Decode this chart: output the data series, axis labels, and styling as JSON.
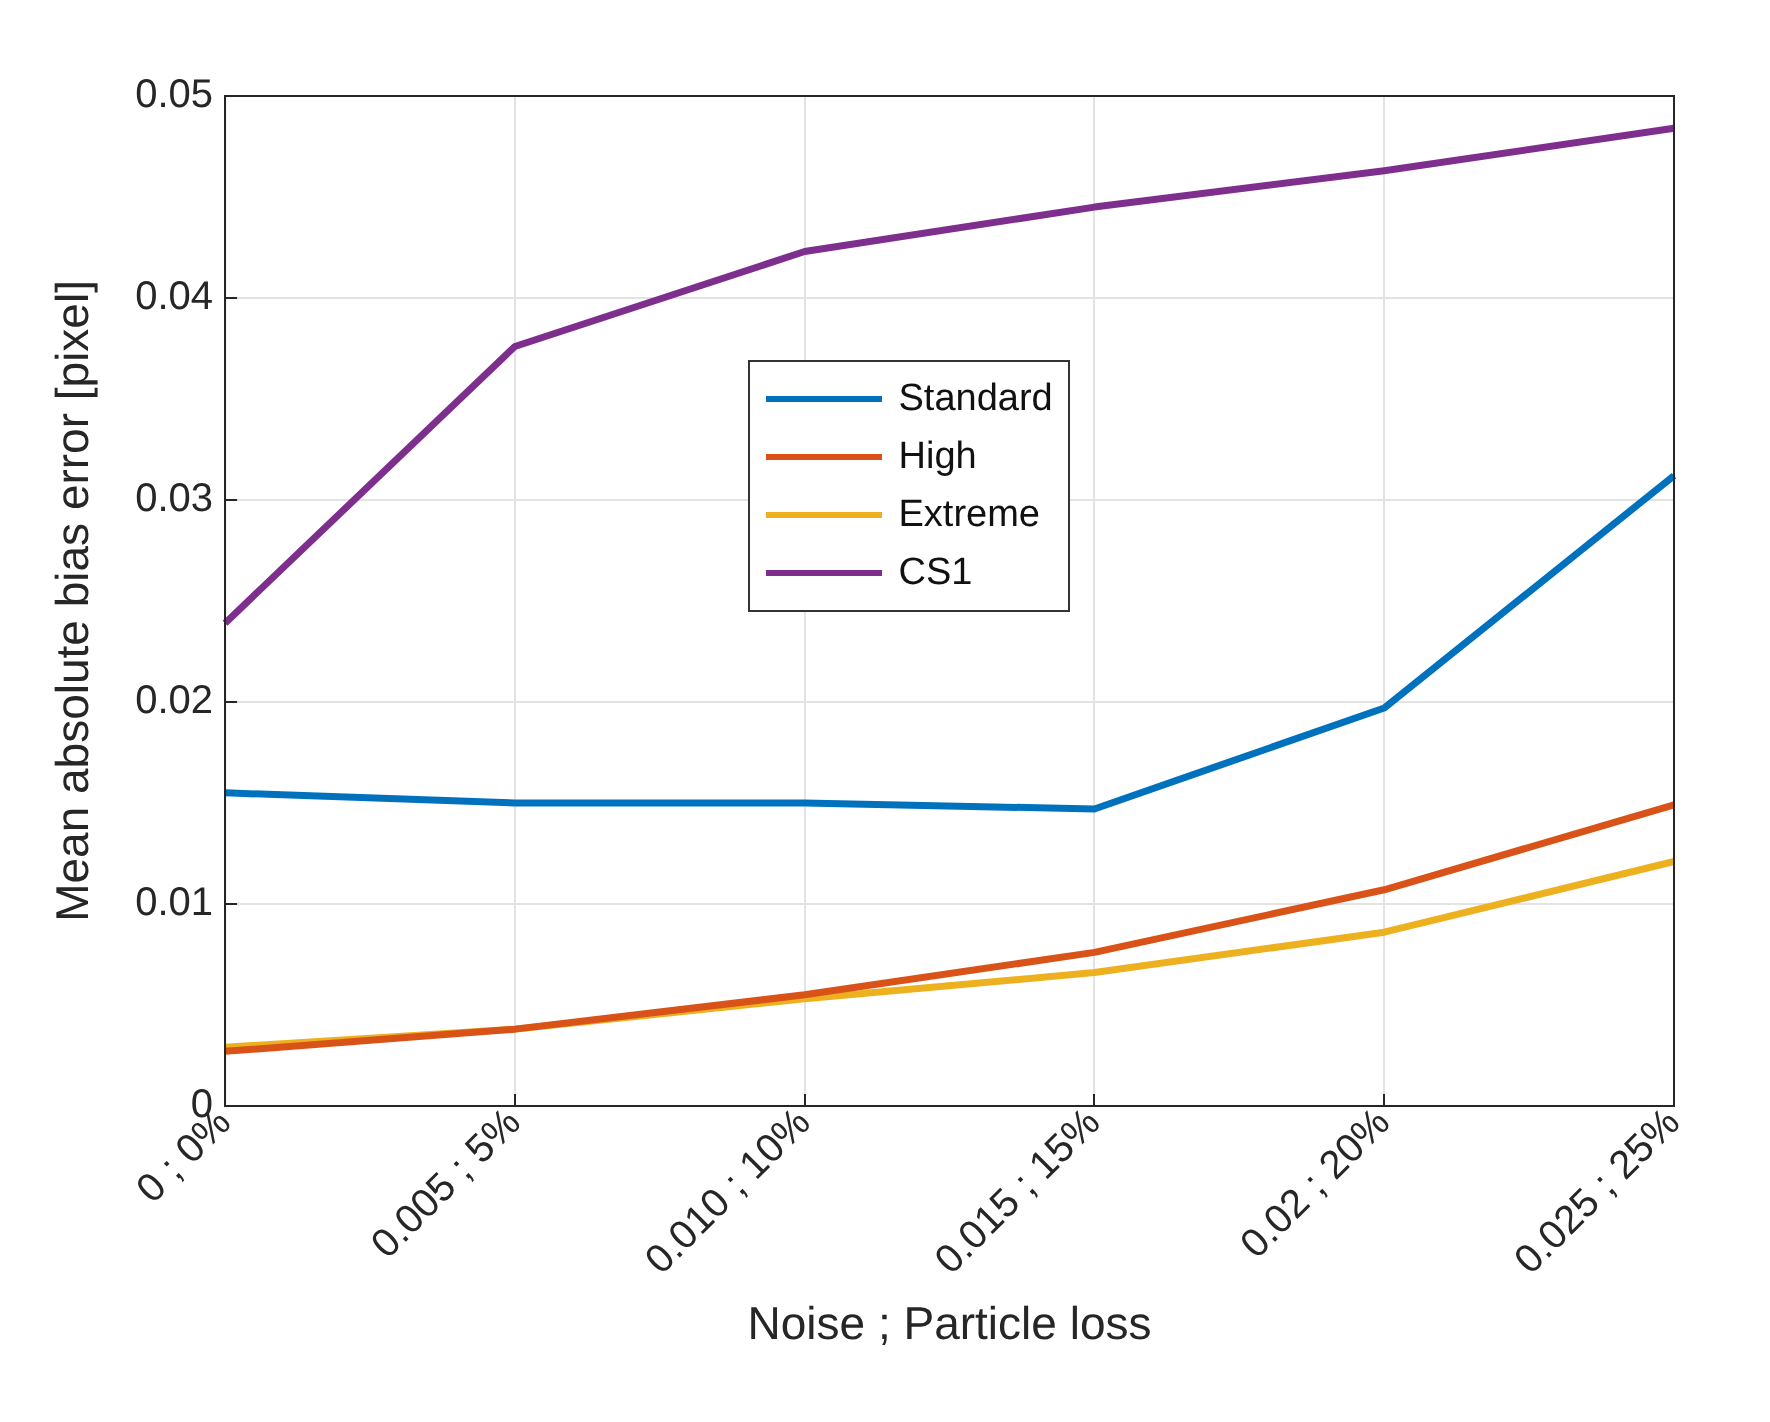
{
  "chart_data": {
    "type": "line",
    "xlabel": "Noise ; Particle loss",
    "ylabel": "Mean absolute bias error [pixel]",
    "categories": [
      "0 ; 0%",
      "0.005 ; 5%",
      "0.010 ; 10%",
      "0.015 ; 15%",
      "0.02 ; 20%",
      "0.025 ; 25%"
    ],
    "series": [
      {
        "name": "Standard",
        "color": "#0072bd",
        "values": [
          0.0155,
          0.015,
          0.015,
          0.0147,
          0.0197,
          0.0312
        ]
      },
      {
        "name": "High",
        "color": "#d95319",
        "values": [
          0.0027,
          0.0038,
          0.0055,
          0.0076,
          0.0107,
          0.0149
        ]
      },
      {
        "name": "Extreme",
        "color": "#edb120",
        "values": [
          0.0029,
          0.0038,
          0.0053,
          0.0066,
          0.0086,
          0.0121
        ]
      },
      {
        "name": "CS1",
        "color": "#7e2f8e",
        "values": [
          0.0239,
          0.0376,
          0.0423,
          0.0445,
          0.0463,
          0.0484
        ]
      }
    ],
    "ylim": [
      0,
      0.05
    ],
    "yticks": [
      0,
      0.01,
      0.02,
      0.03,
      0.04,
      0.05
    ],
    "grid": true,
    "legend": "top",
    "marker": "none",
    "line_style": "solid"
  }
}
